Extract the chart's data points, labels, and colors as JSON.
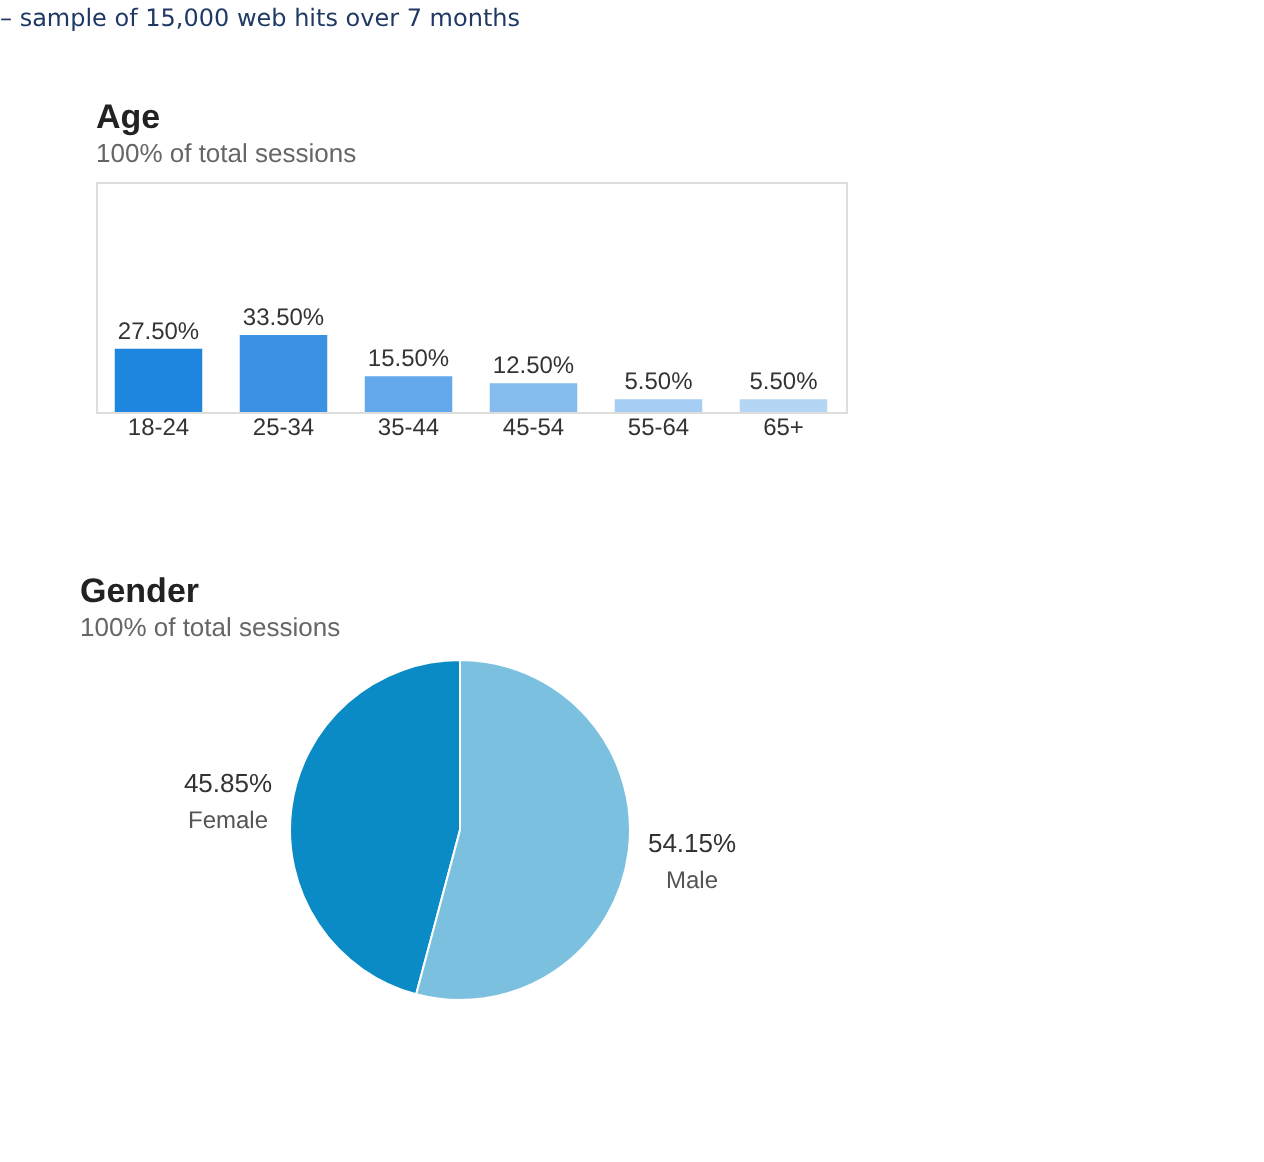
{
  "chart_data": [
    {
      "type": "bar",
      "title": "Age",
      "subtitle": "100% of total sessions",
      "annotations": [
        "– sample of 15,000 web hits over 7 months"
      ],
      "categories": [
        "18-24",
        "25-34",
        "35-44",
        "45-54",
        "55-64",
        "65+"
      ],
      "values": [
        27.5,
        33.5,
        15.5,
        12.5,
        5.5,
        5.5
      ],
      "value_labels": [
        "27.50%",
        "33.50%",
        "15.50%",
        "12.50%",
        "5.50%",
        "5.50%"
      ],
      "colors": [
        "#1f86e0",
        "#3b92e4",
        "#62a8ea",
        "#86bbee",
        "#a6cdf3",
        "#b4d5f3"
      ],
      "ylim": [
        0,
        100
      ],
      "tick_labels": "x"
    },
    {
      "type": "pie",
      "title": "Gender",
      "subtitle": "100% of total sessions",
      "categories": [
        "Female",
        "Male"
      ],
      "values": [
        45.85,
        54.15
      ],
      "value_labels": [
        "45.85%",
        "54.15%"
      ],
      "colors": [
        "#0a8bc6",
        "#7cc0e0"
      ]
    }
  ]
}
